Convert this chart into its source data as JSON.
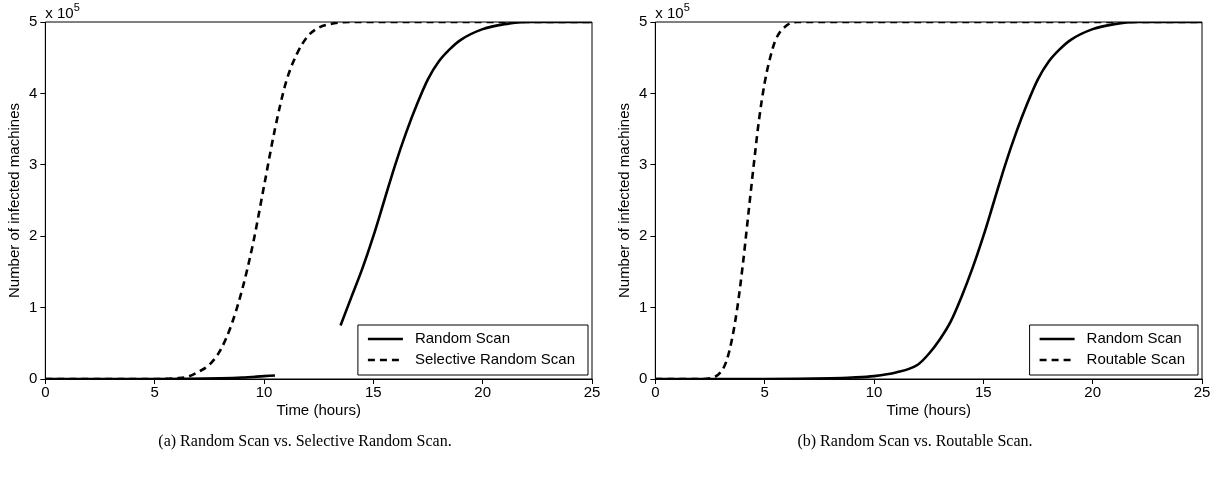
{
  "chart_data": [
    {
      "type": "line",
      "xlabel": "Time (hours)",
      "ylabel": "Number of infected machines",
      "annotations": [
        "x 10$^{5}$",
        "(a) Random Scan vs. Selective Random Scan."
      ],
      "xlim": [
        0,
        25
      ],
      "xticks": [
        0,
        5,
        10,
        15,
        20,
        25
      ],
      "ylim": [
        0,
        5
      ],
      "yticks": [
        0,
        1,
        2,
        3,
        4,
        5
      ],
      "grid": false,
      "legend": "bottom right",
      "marker": "none",
      "series": [
        {
          "name": "Random Scan",
          "color": "#000000",
          "line_style": "solid",
          "x": [
            0,
            5,
            8,
            9,
            10,
            10.5,
            11,
            12,
            13,
            13.5,
            14,
            14.5,
            15,
            15.5,
            16,
            16.5,
            17,
            17.5,
            18,
            18.5,
            19,
            20,
            21,
            22,
            25
          ],
          "values": [
            0,
            0,
            0.01,
            0.02,
            0.04,
            0.05,
            null,
            null,
            null,
            0.75,
            1.15,
            1.55,
            2.0,
            2.5,
            3.0,
            3.45,
            3.85,
            4.2,
            4.45,
            4.62,
            4.75,
            4.9,
            4.97,
            5,
            5
          ]
        },
        {
          "name": "Selective Random Scan",
          "color": "#000000",
          "line_style": "dashed",
          "x": [
            0,
            5,
            6,
            6.5,
            7,
            7.5,
            8,
            8.5,
            9,
            9.5,
            10,
            10.5,
            11,
            11.5,
            12,
            12.5,
            13,
            14,
            25
          ],
          "values": [
            0,
            0,
            0.01,
            0.03,
            0.1,
            0.2,
            0.4,
            0.75,
            1.25,
            1.9,
            2.7,
            3.5,
            4.15,
            4.55,
            4.8,
            4.92,
            4.97,
            5,
            5
          ]
        }
      ]
    },
    {
      "type": "line",
      "xlabel": "Time (hours)",
      "ylabel": "Number of infected machines",
      "annotations": [
        "x 10$^{5}$",
        "(b) Random Scan vs. Routable Scan."
      ],
      "xlim": [
        0,
        25
      ],
      "xticks": [
        0,
        5,
        10,
        15,
        20,
        25
      ],
      "ylim": [
        0,
        5
      ],
      "yticks": [
        0,
        1,
        2,
        3,
        4,
        5
      ],
      "grid": false,
      "legend": "bottom right",
      "marker": "none",
      "series": [
        {
          "name": "Random Scan",
          "color": "#000000",
          "line_style": "solid",
          "x": [
            0,
            5,
            8,
            9,
            10,
            11,
            12,
            12.5,
            13,
            13.5,
            14,
            14.5,
            15,
            15.5,
            16,
            16.5,
            17,
            17.5,
            18,
            18.5,
            19,
            20,
            21,
            22,
            25
          ],
          "values": [
            0,
            0,
            0.01,
            0.02,
            0.04,
            0.09,
            0.2,
            0.35,
            0.55,
            0.8,
            1.15,
            1.55,
            2.0,
            2.5,
            3.0,
            3.45,
            3.85,
            4.2,
            4.45,
            4.62,
            4.75,
            4.9,
            4.97,
            5,
            5
          ]
        },
        {
          "name": "Routable Scan",
          "color": "#000000",
          "line_style": "dashed",
          "x": [
            0,
            2,
            2.5,
            3,
            3.25,
            3.5,
            3.75,
            4,
            4.25,
            4.5,
            4.75,
            5,
            5.25,
            5.5,
            6,
            6.5,
            25
          ],
          "values": [
            0,
            0,
            0.01,
            0.1,
            0.25,
            0.55,
            1.0,
            1.6,
            2.3,
            3.0,
            3.65,
            4.15,
            4.5,
            4.75,
            4.95,
            5,
            5
          ]
        }
      ]
    }
  ]
}
